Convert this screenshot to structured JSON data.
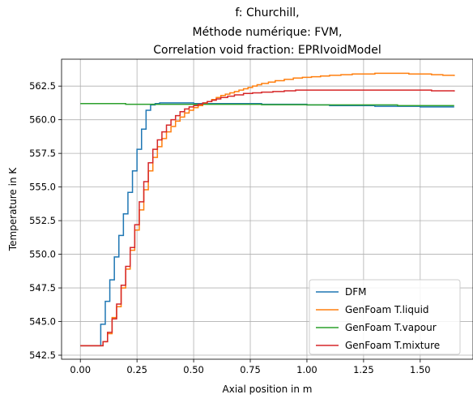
{
  "chart_data": {
    "type": "line",
    "title_lines": [
      "f: Churchill,",
      "Méthode numérique: FVM,",
      "Correlation void fraction: EPRIvoidModel"
    ],
    "xlabel": "Axial position in m",
    "ylabel": "Temperature in K",
    "xlim": [
      -0.083,
      1.733
    ],
    "ylim": [
      542.2,
      564.5
    ],
    "xticks": [
      0.0,
      0.25,
      0.5,
      0.75,
      1.0,
      1.25,
      1.5
    ],
    "xtick_labels": [
      "0.00",
      "0.25",
      "0.50",
      "0.75",
      "1.00",
      "1.25",
      "1.50"
    ],
    "yticks": [
      542.5,
      545.0,
      547.5,
      550.0,
      552.5,
      555.0,
      557.5,
      560.0,
      562.5
    ],
    "ytick_labels": [
      "542.5",
      "545.0",
      "547.5",
      "550.0",
      "552.5",
      "555.0",
      "557.5",
      "560.0",
      "562.5"
    ],
    "grid": true,
    "legend_position": "lower-right",
    "step": true,
    "series": [
      {
        "name": "DFM",
        "color": "#1f77b4",
        "x": [
          0.0,
          0.09,
          0.11,
          0.13,
          0.15,
          0.17,
          0.19,
          0.21,
          0.23,
          0.25,
          0.27,
          0.29,
          0.31,
          0.33,
          0.35,
          0.4,
          0.45,
          0.5,
          0.6,
          0.8,
          1.0,
          1.1,
          1.3,
          1.5,
          1.65
        ],
        "y": [
          543.2,
          544.8,
          546.5,
          548.1,
          549.8,
          551.4,
          553.0,
          554.6,
          556.2,
          557.8,
          559.3,
          560.7,
          561.1,
          561.2,
          561.25,
          561.25,
          561.25,
          561.2,
          561.2,
          561.15,
          561.1,
          561.05,
          561.0,
          560.95,
          560.95
        ]
      },
      {
        "name": "GenFoam T.liquid",
        "color": "#ff7f0e",
        "x": [
          0.0,
          0.1,
          0.12,
          0.14,
          0.16,
          0.18,
          0.2,
          0.22,
          0.24,
          0.26,
          0.28,
          0.3,
          0.32,
          0.34,
          0.36,
          0.38,
          0.4,
          0.42,
          0.44,
          0.46,
          0.48,
          0.5,
          0.52,
          0.54,
          0.56,
          0.58,
          0.6,
          0.62,
          0.64,
          0.66,
          0.68,
          0.7,
          0.72,
          0.74,
          0.76,
          0.78,
          0.8,
          0.83,
          0.86,
          0.9,
          0.94,
          0.98,
          1.02,
          1.06,
          1.1,
          1.15,
          1.2,
          1.3,
          1.45,
          1.55,
          1.6,
          1.65
        ],
        "y": [
          543.2,
          543.5,
          544.1,
          545.3,
          546.1,
          547.5,
          548.9,
          550.3,
          551.8,
          553.3,
          554.8,
          556.2,
          557.2,
          558.0,
          558.6,
          559.1,
          559.5,
          559.9,
          560.2,
          560.5,
          560.7,
          560.9,
          561.05,
          561.2,
          561.35,
          561.5,
          561.65,
          561.8,
          561.9,
          562.0,
          562.1,
          562.2,
          562.3,
          562.4,
          562.5,
          562.6,
          562.7,
          562.8,
          562.9,
          563.0,
          563.1,
          563.15,
          563.2,
          563.25,
          563.3,
          563.35,
          563.4,
          563.45,
          563.4,
          563.35,
          563.3,
          563.25
        ]
      },
      {
        "name": "GenFoam T.vapour",
        "color": "#2ca02c",
        "x": [
          0.0,
          0.2,
          0.4,
          0.6,
          0.8,
          1.0,
          1.2,
          1.4,
          1.65
        ],
        "y": [
          561.2,
          561.15,
          561.15,
          561.15,
          561.12,
          561.1,
          561.1,
          561.05,
          561.05
        ]
      },
      {
        "name": "GenFoam T.mixture",
        "color": "#d62728",
        "x": [
          0.0,
          0.1,
          0.12,
          0.14,
          0.16,
          0.18,
          0.2,
          0.22,
          0.24,
          0.26,
          0.28,
          0.3,
          0.32,
          0.34,
          0.36,
          0.38,
          0.4,
          0.42,
          0.44,
          0.46,
          0.48,
          0.5,
          0.52,
          0.54,
          0.56,
          0.58,
          0.6,
          0.62,
          0.65,
          0.68,
          0.72,
          0.76,
          0.8,
          0.85,
          0.9,
          0.95,
          1.0,
          1.05,
          1.1,
          1.2,
          1.3,
          1.45,
          1.55,
          1.65
        ],
        "y": [
          543.2,
          543.5,
          544.2,
          545.2,
          546.3,
          547.7,
          549.1,
          550.5,
          552.2,
          553.9,
          555.4,
          556.8,
          557.8,
          558.5,
          559.1,
          559.6,
          560.0,
          560.3,
          560.6,
          560.8,
          560.95,
          561.05,
          561.15,
          561.25,
          561.35,
          561.45,
          561.55,
          561.65,
          561.75,
          561.85,
          561.95,
          562.0,
          562.05,
          562.1,
          562.15,
          562.2,
          562.2,
          562.2,
          562.2,
          562.2,
          562.2,
          562.2,
          562.15,
          562.1
        ]
      }
    ]
  }
}
